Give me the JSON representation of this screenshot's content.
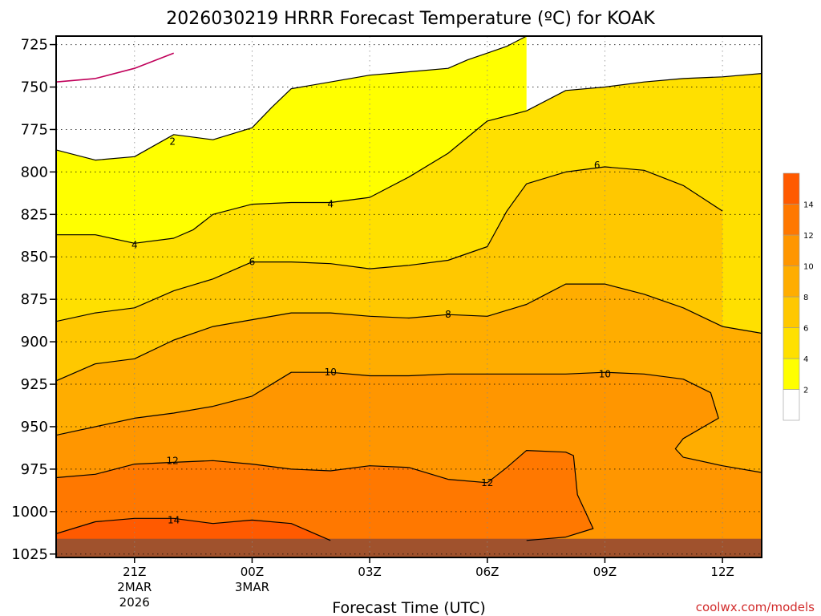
{
  "chart_data": {
    "type": "contour",
    "title": "2026030219 HRRR Forecast Temperature (ºC) for KOAK",
    "xlabel": "Forecast Time (UTC)",
    "ylabel": "",
    "credit": "coolwx.com/models",
    "y_is_pressure_hPa": true,
    "x_range_hours": [
      19,
      37
    ],
    "y_range_hPa": [
      720,
      1027
    ],
    "y_ticks": [
      {
        "value": 725,
        "label": "725"
      },
      {
        "value": 750,
        "label": "750"
      },
      {
        "value": 775,
        "label": "775"
      },
      {
        "value": 800,
        "label": "800"
      },
      {
        "value": 825,
        "label": "825"
      },
      {
        "value": 850,
        "label": "850"
      },
      {
        "value": 875,
        "label": "875"
      },
      {
        "value": 900,
        "label": "900"
      },
      {
        "value": 925,
        "label": "925"
      },
      {
        "value": 950,
        "label": "950"
      },
      {
        "value": 975,
        "label": "975"
      },
      {
        "value": 1000,
        "label": "1000"
      },
      {
        "value": 1025,
        "label": "1025"
      }
    ],
    "x_ticks": [
      {
        "value": 21,
        "label": "21Z",
        "date1": "2MAR",
        "date2": "2026"
      },
      {
        "value": 24,
        "label": "00Z",
        "date1": "3MAR",
        "date2": ""
      },
      {
        "value": 27,
        "label": "03Z",
        "date1": "",
        "date2": ""
      },
      {
        "value": 30,
        "label": "06Z",
        "date1": "",
        "date2": ""
      },
      {
        "value": 33,
        "label": "09Z",
        "date1": "",
        "date2": ""
      },
      {
        "value": 36,
        "label": "12Z",
        "date1": "",
        "date2": ""
      }
    ],
    "contour_levels": [
      0,
      2,
      4,
      6,
      8,
      10,
      12,
      14
    ],
    "contours": [
      {
        "level": 0,
        "color": "#c0005a",
        "points": [
          [
            19,
            747
          ],
          [
            20,
            745
          ],
          [
            21,
            739
          ],
          [
            22,
            730
          ]
        ]
      },
      {
        "level": 2,
        "color": "#000000",
        "points": [
          [
            19,
            787
          ],
          [
            20,
            793
          ],
          [
            21,
            791
          ],
          [
            22,
            778
          ],
          [
            23,
            781
          ],
          [
            24,
            774
          ],
          [
            24.5,
            762
          ],
          [
            25,
            751
          ],
          [
            26,
            747
          ],
          [
            27,
            743
          ],
          [
            28,
            741
          ],
          [
            29,
            739
          ],
          [
            29.5,
            734
          ],
          [
            30,
            730
          ],
          [
            30.5,
            726
          ],
          [
            31,
            720
          ]
        ]
      },
      {
        "level": 4,
        "color": "#000000",
        "points": [
          [
            19,
            837
          ],
          [
            20,
            837
          ],
          [
            21,
            842
          ],
          [
            22,
            839
          ],
          [
            22.5,
            834
          ],
          [
            23,
            825
          ],
          [
            24,
            819
          ],
          [
            25,
            818
          ],
          [
            26,
            818
          ],
          [
            27,
            815
          ],
          [
            28,
            803
          ],
          [
            29,
            789
          ],
          [
            30,
            770
          ],
          [
            31,
            764
          ],
          [
            32,
            752
          ],
          [
            33,
            750
          ],
          [
            34,
            747
          ],
          [
            35,
            745
          ],
          [
            36,
            744
          ],
          [
            37,
            742
          ]
        ]
      },
      {
        "level": 6,
        "color": "#000000",
        "points": [
          [
            19,
            888
          ],
          [
            20,
            883
          ],
          [
            21,
            880
          ],
          [
            22,
            870
          ],
          [
            23,
            863
          ],
          [
            24,
            853
          ],
          [
            25,
            853
          ],
          [
            26,
            854
          ],
          [
            27,
            857
          ],
          [
            28,
            855
          ],
          [
            29,
            852
          ],
          [
            30,
            844
          ],
          [
            30.5,
            823
          ],
          [
            31,
            807
          ],
          [
            32,
            800
          ],
          [
            33,
            797
          ],
          [
            34,
            799
          ],
          [
            35,
            808
          ],
          [
            36,
            823
          ]
        ]
      },
      {
        "level": 8,
        "color": "#000000",
        "points": [
          [
            19,
            923
          ],
          [
            20,
            913
          ],
          [
            21,
            910
          ],
          [
            22,
            899
          ],
          [
            23,
            891
          ],
          [
            24,
            887
          ],
          [
            25,
            883
          ],
          [
            26,
            883
          ],
          [
            27,
            885
          ],
          [
            28,
            886
          ],
          [
            29,
            884
          ],
          [
            30,
            885
          ],
          [
            31,
            878
          ],
          [
            31.5,
            872
          ],
          [
            32,
            866
          ],
          [
            33,
            866
          ],
          [
            34,
            872
          ],
          [
            35,
            880
          ],
          [
            36,
            891
          ],
          [
            37,
            895
          ]
        ]
      },
      {
        "level": 10,
        "color": "#000000",
        "points": [
          [
            19,
            955
          ],
          [
            20,
            950
          ],
          [
            21,
            945
          ],
          [
            22,
            942
          ],
          [
            23,
            938
          ],
          [
            24,
            932
          ],
          [
            25,
            918
          ],
          [
            26,
            918
          ],
          [
            27,
            920
          ],
          [
            28,
            920
          ],
          [
            29,
            919
          ],
          [
            30,
            919
          ],
          [
            31,
            919
          ],
          [
            32,
            919
          ],
          [
            33,
            918
          ],
          [
            34,
            919
          ],
          [
            35,
            922
          ],
          [
            35.7,
            930
          ],
          [
            35.9,
            945
          ],
          [
            35,
            957
          ],
          [
            34.8,
            963
          ],
          [
            35,
            968
          ],
          [
            36,
            973
          ],
          [
            37,
            977
          ]
        ]
      },
      {
        "level": 12,
        "color": "#000000",
        "points": [
          [
            19,
            980
          ],
          [
            20,
            978
          ],
          [
            21,
            972
          ],
          [
            22,
            971
          ],
          [
            23,
            970
          ],
          [
            24,
            972
          ],
          [
            25,
            975
          ],
          [
            26,
            976
          ],
          [
            27,
            973
          ],
          [
            28,
            974
          ],
          [
            29,
            981
          ],
          [
            30,
            983
          ],
          [
            30.5,
            974
          ],
          [
            31,
            964
          ],
          [
            32,
            965
          ],
          [
            32.2,
            967
          ],
          [
            32.3,
            990
          ],
          [
            32.7,
            1010
          ],
          [
            32,
            1015
          ],
          [
            31.5,
            1016
          ],
          [
            31,
            1017
          ]
        ]
      },
      {
        "level": 14,
        "color": "#000000",
        "points": [
          [
            19,
            1013
          ],
          [
            20,
            1006
          ],
          [
            21,
            1004
          ],
          [
            22,
            1004
          ],
          [
            23,
            1007
          ],
          [
            24,
            1005
          ],
          [
            25,
            1007
          ],
          [
            26,
            1017
          ]
        ]
      }
    ],
    "contour_labels": [
      {
        "text": "2",
        "x": 21.97,
        "y": 782
      },
      {
        "text": "4",
        "x": 21,
        "y": 843
      },
      {
        "text": "4",
        "x": 26,
        "y": 819
      },
      {
        "text": "6",
        "x": 24,
        "y": 853
      },
      {
        "text": "6",
        "x": 32.8,
        "y": 796
      },
      {
        "text": "8",
        "x": 29,
        "y": 884
      },
      {
        "text": "10",
        "x": 26,
        "y": 918
      },
      {
        "text": "10",
        "x": 33,
        "y": 919
      },
      {
        "text": "12",
        "x": 21.97,
        "y": 970
      },
      {
        "text": "12",
        "x": 30,
        "y": 983
      },
      {
        "text": "14",
        "x": 22,
        "y": 1005
      }
    ],
    "fill_levels": [
      {
        "min": 0,
        "max": 2,
        "color": "#ffffff"
      },
      {
        "min": 2,
        "max": 4,
        "color": "#ffff00"
      },
      {
        "min": 4,
        "max": 6,
        "color": "#ffe000"
      },
      {
        "min": 6,
        "max": 8,
        "color": "#ffc800"
      },
      {
        "min": 8,
        "max": 10,
        "color": "#ffad00"
      },
      {
        "min": 10,
        "max": 12,
        "color": "#ff9600"
      },
      {
        "min": 12,
        "max": 14,
        "color": "#ff7800"
      },
      {
        "min": 14,
        "max": 16,
        "color": "#ff5a00"
      }
    ],
    "surface": {
      "color": "#a0522d",
      "from_hPa": 1016
    },
    "legend": {
      "placement": "right",
      "tick_labels": [
        "2",
        "4",
        "6",
        "8",
        "10",
        "12",
        "14"
      ]
    },
    "grid": true
  }
}
